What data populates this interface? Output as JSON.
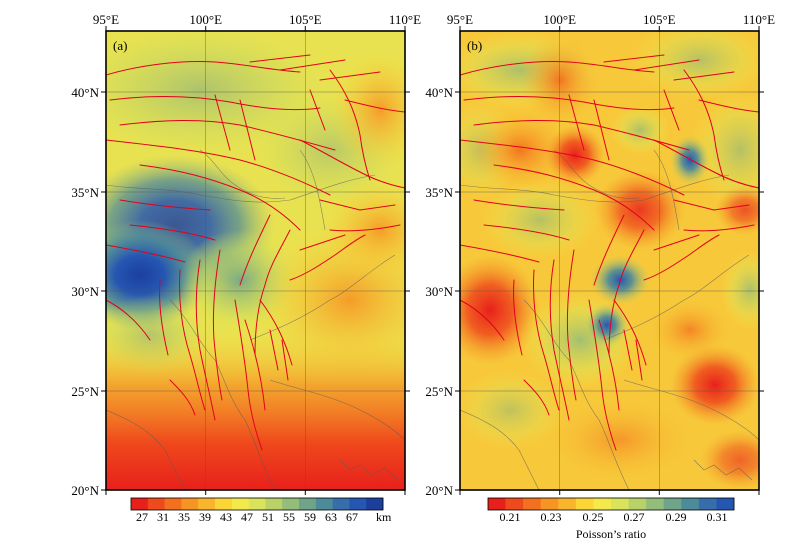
{
  "panels": [
    {
      "label": "(a)",
      "lon_ticks": [
        "95°E",
        "100°E",
        "105°E",
        "110°E"
      ],
      "lat_ticks": [
        "40°N",
        "35°N",
        "30°N",
        "25°N",
        "20°N"
      ],
      "colorbar": {
        "ticks": [
          "27",
          "31",
          "35",
          "39",
          "43",
          "47",
          "51",
          "55",
          "59",
          "63",
          "67"
        ],
        "unit": "km",
        "colors": [
          "#e8201c",
          "#ef4a1c",
          "#f3701e",
          "#f69424",
          "#f9b62c",
          "#fbd436",
          "#f4e94a",
          "#d9e45a",
          "#b8d268",
          "#94bd7a",
          "#6fa38a",
          "#4d8a9a",
          "#356ea8",
          "#2556b2",
          "#1c3f9e"
        ]
      }
    },
    {
      "label": "(b)",
      "lon_ticks": [
        "95°E",
        "100°E",
        "105°E",
        "110°E"
      ],
      "lat_ticks": [
        "40°N",
        "35°N",
        "30°N",
        "25°N",
        "20°N"
      ],
      "colorbar": {
        "ticks": [
          "0.21",
          "0.23",
          "0.25",
          "0.27",
          "0.29",
          "0.31"
        ],
        "title": "Poisson’s ratio",
        "colors": [
          "#e8201c",
          "#ef4a1c",
          "#f3701e",
          "#f69424",
          "#f9b62c",
          "#fbd436",
          "#f4e94a",
          "#d9e45a",
          "#b8d268",
          "#94bd7a",
          "#6fa38a",
          "#4d8a9a",
          "#356ea8",
          "#2556b2"
        ]
      }
    }
  ]
}
